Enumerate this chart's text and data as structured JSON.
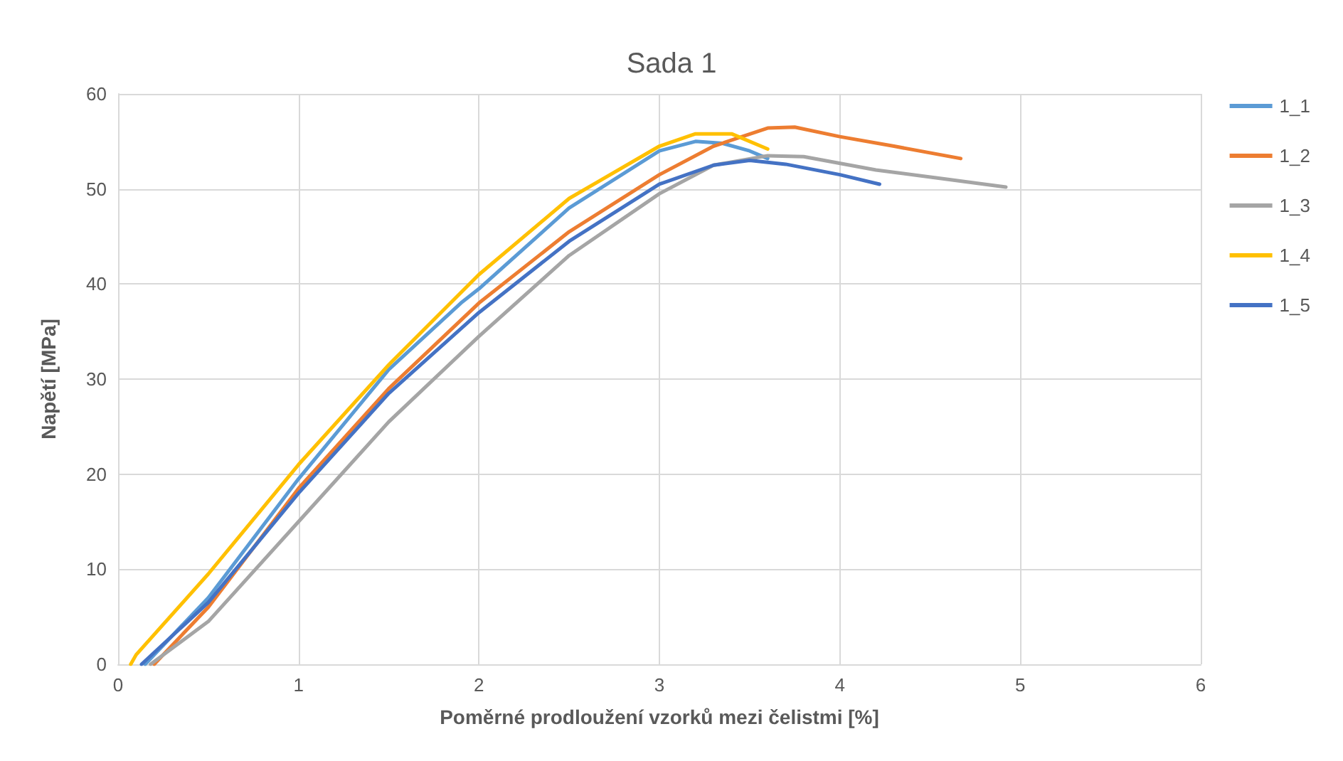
{
  "chart_data": {
    "type": "line",
    "title": "Sada 1",
    "xlabel": "Poměrné prodloužení vzorků mezi čelistmi [%]",
    "ylabel": "Napětí [MPa]",
    "xlim": [
      0,
      6
    ],
    "xticks": [
      0,
      1,
      2,
      3,
      4,
      5,
      6
    ],
    "ylim": [
      0,
      60
    ],
    "yticks": [
      0,
      10,
      20,
      30,
      40,
      50,
      60
    ],
    "grid": true,
    "legend": "right",
    "marker": "none",
    "line_style": "solid",
    "series": [
      {
        "name": "1_1",
        "color": "#5b9bd5",
        "x": [
          0.15,
          0.5,
          1,
          1.5,
          1.9,
          2,
          2.5,
          3,
          3.2,
          3.35,
          3.5,
          3.6
        ],
        "values": [
          0,
          7,
          19.5,
          31,
          38,
          39.5,
          48,
          54,
          55,
          54.8,
          54,
          53.2
        ]
      },
      {
        "name": "1_2",
        "color": "#ed7d31",
        "x": [
          0.2,
          0.5,
          1,
          1.5,
          2,
          2.5,
          3,
          3.3,
          3.6,
          3.75,
          4,
          4.3,
          4.67
        ],
        "values": [
          0,
          6,
          18.5,
          29,
          38,
          45.5,
          51.5,
          54.5,
          56.4,
          56.5,
          55.5,
          54.5,
          53.2
        ]
      },
      {
        "name": "1_3",
        "color": "#a5a5a5",
        "x": [
          0.18,
          0.5,
          1,
          1.5,
          2,
          2.5,
          3,
          3.3,
          3.6,
          3.8,
          4.2,
          4.6,
          4.92
        ],
        "values": [
          0,
          4.5,
          15,
          25.5,
          34.5,
          43,
          49.5,
          52.5,
          53.5,
          53.4,
          52,
          51,
          50.2
        ]
      },
      {
        "name": "1_4",
        "color": "#ffc000",
        "x": [
          0.07,
          0.1,
          0.5,
          1,
          1.5,
          2,
          2.5,
          3,
          3.2,
          3.4,
          3.6
        ],
        "values": [
          0,
          1,
          9.5,
          21,
          31.5,
          41,
          49,
          54.5,
          55.8,
          55.8,
          54.2
        ]
      },
      {
        "name": "1_5",
        "color": "#4472c4",
        "x": [
          0.13,
          0.5,
          1,
          1.5,
          2,
          2.5,
          3,
          3.3,
          3.5,
          3.7,
          4,
          4.22
        ],
        "values": [
          0,
          6.5,
          18,
          28.5,
          37,
          44.5,
          50.5,
          52.5,
          53,
          52.6,
          51.5,
          50.5
        ]
      }
    ]
  }
}
